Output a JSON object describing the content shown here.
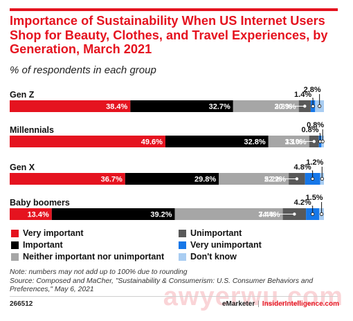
{
  "header": {
    "title": "Importance of Sustainability When US Internet Users Shop for Beauty, Clothes, and Travel Experiences, by Generation, March 2021",
    "subtitle": "% of respondents in each group"
  },
  "colors": {
    "very_important": "#e5131f",
    "important": "#000000",
    "neither": "#a6a6a6",
    "unimportant": "#595959",
    "very_unimportant": "#1677e8",
    "dont_know": "#a9cdf2",
    "accent": "#e5131f"
  },
  "chart_data": {
    "type": "bar",
    "orientation": "horizontal",
    "stacked": true,
    "categories": [
      "Gen Z",
      "Millennials",
      "Gen X",
      "Baby boomers"
    ],
    "series": [
      {
        "name": "Very important",
        "values": [
          38.4,
          49.6,
          36.7,
          13.4
        ],
        "labels": [
          "38.4%",
          "49.6%",
          "36.7%",
          "13.4%"
        ]
      },
      {
        "name": "Important",
        "values": [
          32.7,
          32.8,
          29.8,
          39.2
        ],
        "labels": [
          "32.7%",
          "32.8%",
          "29.8%",
          "39.2%"
        ]
      },
      {
        "name": "Neither important nor unimportant",
        "values": [
          20.9,
          13.0,
          22.2,
          34.4
        ],
        "labels": [
          "20.9%",
          "13.0%",
          "22.2%",
          "34.4%"
        ]
      },
      {
        "name": "Unimportant",
        "values": [
          3.8,
          3.1,
          5.2,
          7.4
        ],
        "labels": [
          "3.8%",
          "3.1%",
          "5.2%",
          "7.4%"
        ]
      },
      {
        "name": "Very unimportant",
        "values": [
          1.4,
          0.8,
          4.8,
          4.2
        ],
        "labels": [
          "1.4%",
          "0.8%",
          "4.8%",
          "4.2%"
        ]
      },
      {
        "name": "Don't know",
        "values": [
          2.8,
          0.8,
          1.2,
          1.5
        ],
        "labels": [
          "2.8%",
          "0.8%",
          "1.2%",
          "1.5%"
        ]
      }
    ],
    "legend_position": "bottom",
    "grid": false
  },
  "legend": {
    "items": [
      {
        "label": "Very important",
        "color": "#e5131f"
      },
      {
        "label": "Important",
        "color": "#000000"
      },
      {
        "label": "Neither important nor unimportant",
        "color": "#a6a6a6"
      },
      {
        "label": "Unimportant",
        "color": "#595959"
      },
      {
        "label": "Very unimportant",
        "color": "#1677e8"
      },
      {
        "label": "Don't know",
        "color": "#a9cdf2"
      }
    ]
  },
  "note": {
    "line1": "Note: numbers may not add up to 100% due to rounding",
    "line2": "Source: Composed and MaCher, \"Sustainability & Consumerism: U.S. Consumer Behaviors and Preferences,\" May 6, 2021"
  },
  "footer": {
    "chart_id": "266512",
    "brand": "eMarketer",
    "separator": "|",
    "site": "InsiderIntelligence.com"
  },
  "watermark": "awyerwu.com"
}
